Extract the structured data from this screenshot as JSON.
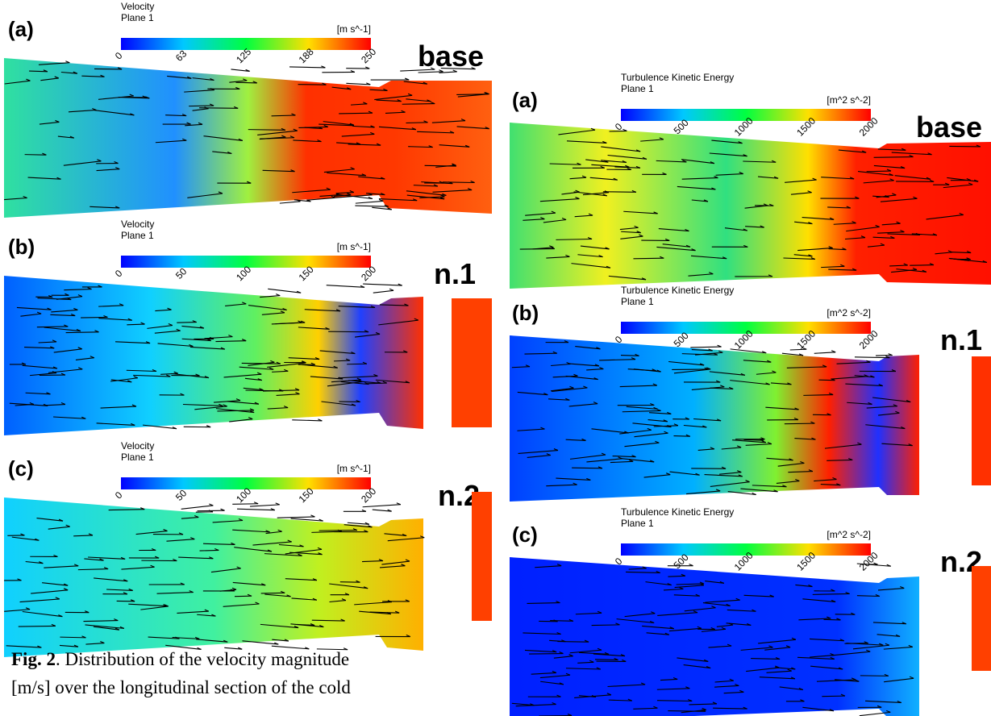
{
  "figure": {
    "left_panels": [
      {
        "label": "(a)",
        "quantity": "Velocity",
        "plane": "Plane 1",
        "unit": "[m s^-1]",
        "ticks": [
          0,
          63,
          125,
          188,
          250
        ],
        "case": "base"
      },
      {
        "label": "(b)",
        "quantity": "Velocity",
        "plane": "Plane 1",
        "unit": "[m s^-1]",
        "ticks": [
          0,
          50,
          100,
          150,
          200
        ],
        "case": "n.1"
      },
      {
        "label": "(c)",
        "quantity": "Velocity",
        "plane": "Plane 1",
        "unit": "[m s^-1]",
        "ticks": [
          0,
          50,
          100,
          150,
          200
        ],
        "case": "n.2"
      }
    ],
    "right_panels": [
      {
        "label": "(a)",
        "quantity": "Turbulence Kinetic Energy",
        "plane": "Plane 1",
        "unit": "[m^2 s^-2]",
        "ticks": [
          0,
          500,
          1000,
          1500,
          2000
        ],
        "case": "base"
      },
      {
        "label": "(b)",
        "quantity": "Turbulence Kinetic Energy",
        "plane": "Plane 1",
        "unit": "[m^2 s^-2]",
        "ticks": [
          0,
          500,
          1000,
          1500,
          2000
        ],
        "case": "n.1"
      },
      {
        "label": "(c)",
        "quantity": "Turbulence Kinetic Energy",
        "plane": "Plane 1",
        "unit": "[m^2 s^-2]",
        "ticks": [
          0,
          500,
          1000,
          1500,
          2000
        ],
        "case": "n.2"
      }
    ],
    "caption": {
      "label": "Fig. 2",
      "line1": ". Distribution of the velocity magnitude",
      "line2": "[m/s] over the longitudinal section of the cold"
    }
  }
}
